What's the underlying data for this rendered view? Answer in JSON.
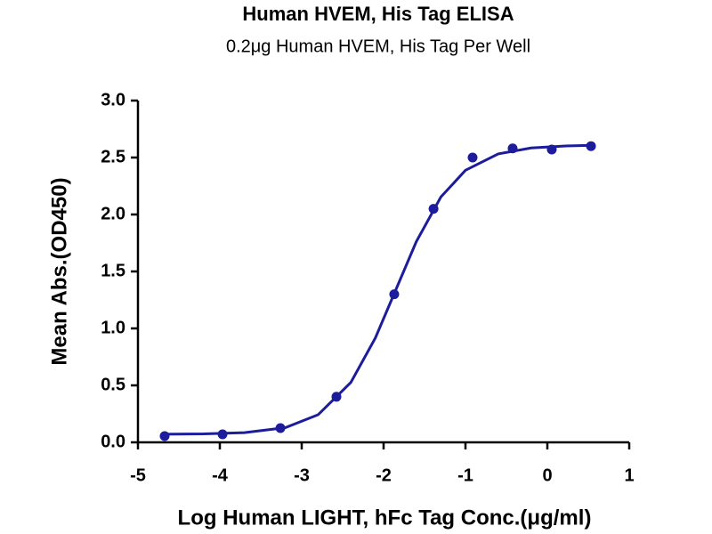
{
  "chart_data": {
    "type": "scatter",
    "title": "Human HVEM, His Tag ELISA",
    "subtitle": "0.2μg Human HVEM, His Tag Per Well",
    "xlabel": "Log Human LIGHT, hFc Tag Conc.(μg/ml)",
    "ylabel": "Mean Abs.(OD450)",
    "color": "#1c1c9c",
    "x": [
      -4.674,
      -3.967,
      -3.26,
      -2.576,
      -1.87,
      -1.39,
      -0.913,
      -0.424,
      0.054,
      0.533
    ],
    "values": [
      0.055,
      0.07,
      0.125,
      0.4,
      1.3,
      2.05,
      2.5,
      2.58,
      2.57,
      2.6
    ],
    "curve": {
      "x": [
        -4.7,
        -4.2,
        -3.7,
        -3.2,
        -2.8,
        -2.4,
        -2.1,
        -1.85,
        -1.6,
        -1.3,
        -1.0,
        -0.6,
        -0.2,
        0.2,
        0.5
      ],
      "values": [
        0.071,
        0.074,
        0.085,
        0.129,
        0.242,
        0.526,
        0.917,
        1.34,
        1.762,
        2.154,
        2.388,
        2.532,
        2.584,
        2.601,
        2.606
      ]
    },
    "xlim": [
      -5,
      1
    ],
    "ylim": [
      0,
      3
    ],
    "xticks": [
      -5,
      -4,
      -3,
      -2,
      -1,
      0,
      1
    ],
    "yticks": [
      {
        "value": 0,
        "label": "0.0"
      },
      {
        "value": 0.5,
        "label": "0.5"
      },
      {
        "value": 1,
        "label": "1.0"
      },
      {
        "value": 1.5,
        "label": "1.5"
      },
      {
        "value": 2,
        "label": "2.0"
      },
      {
        "value": 2.5,
        "label": "2.5"
      },
      {
        "value": 3,
        "label": "3.0"
      }
    ]
  }
}
